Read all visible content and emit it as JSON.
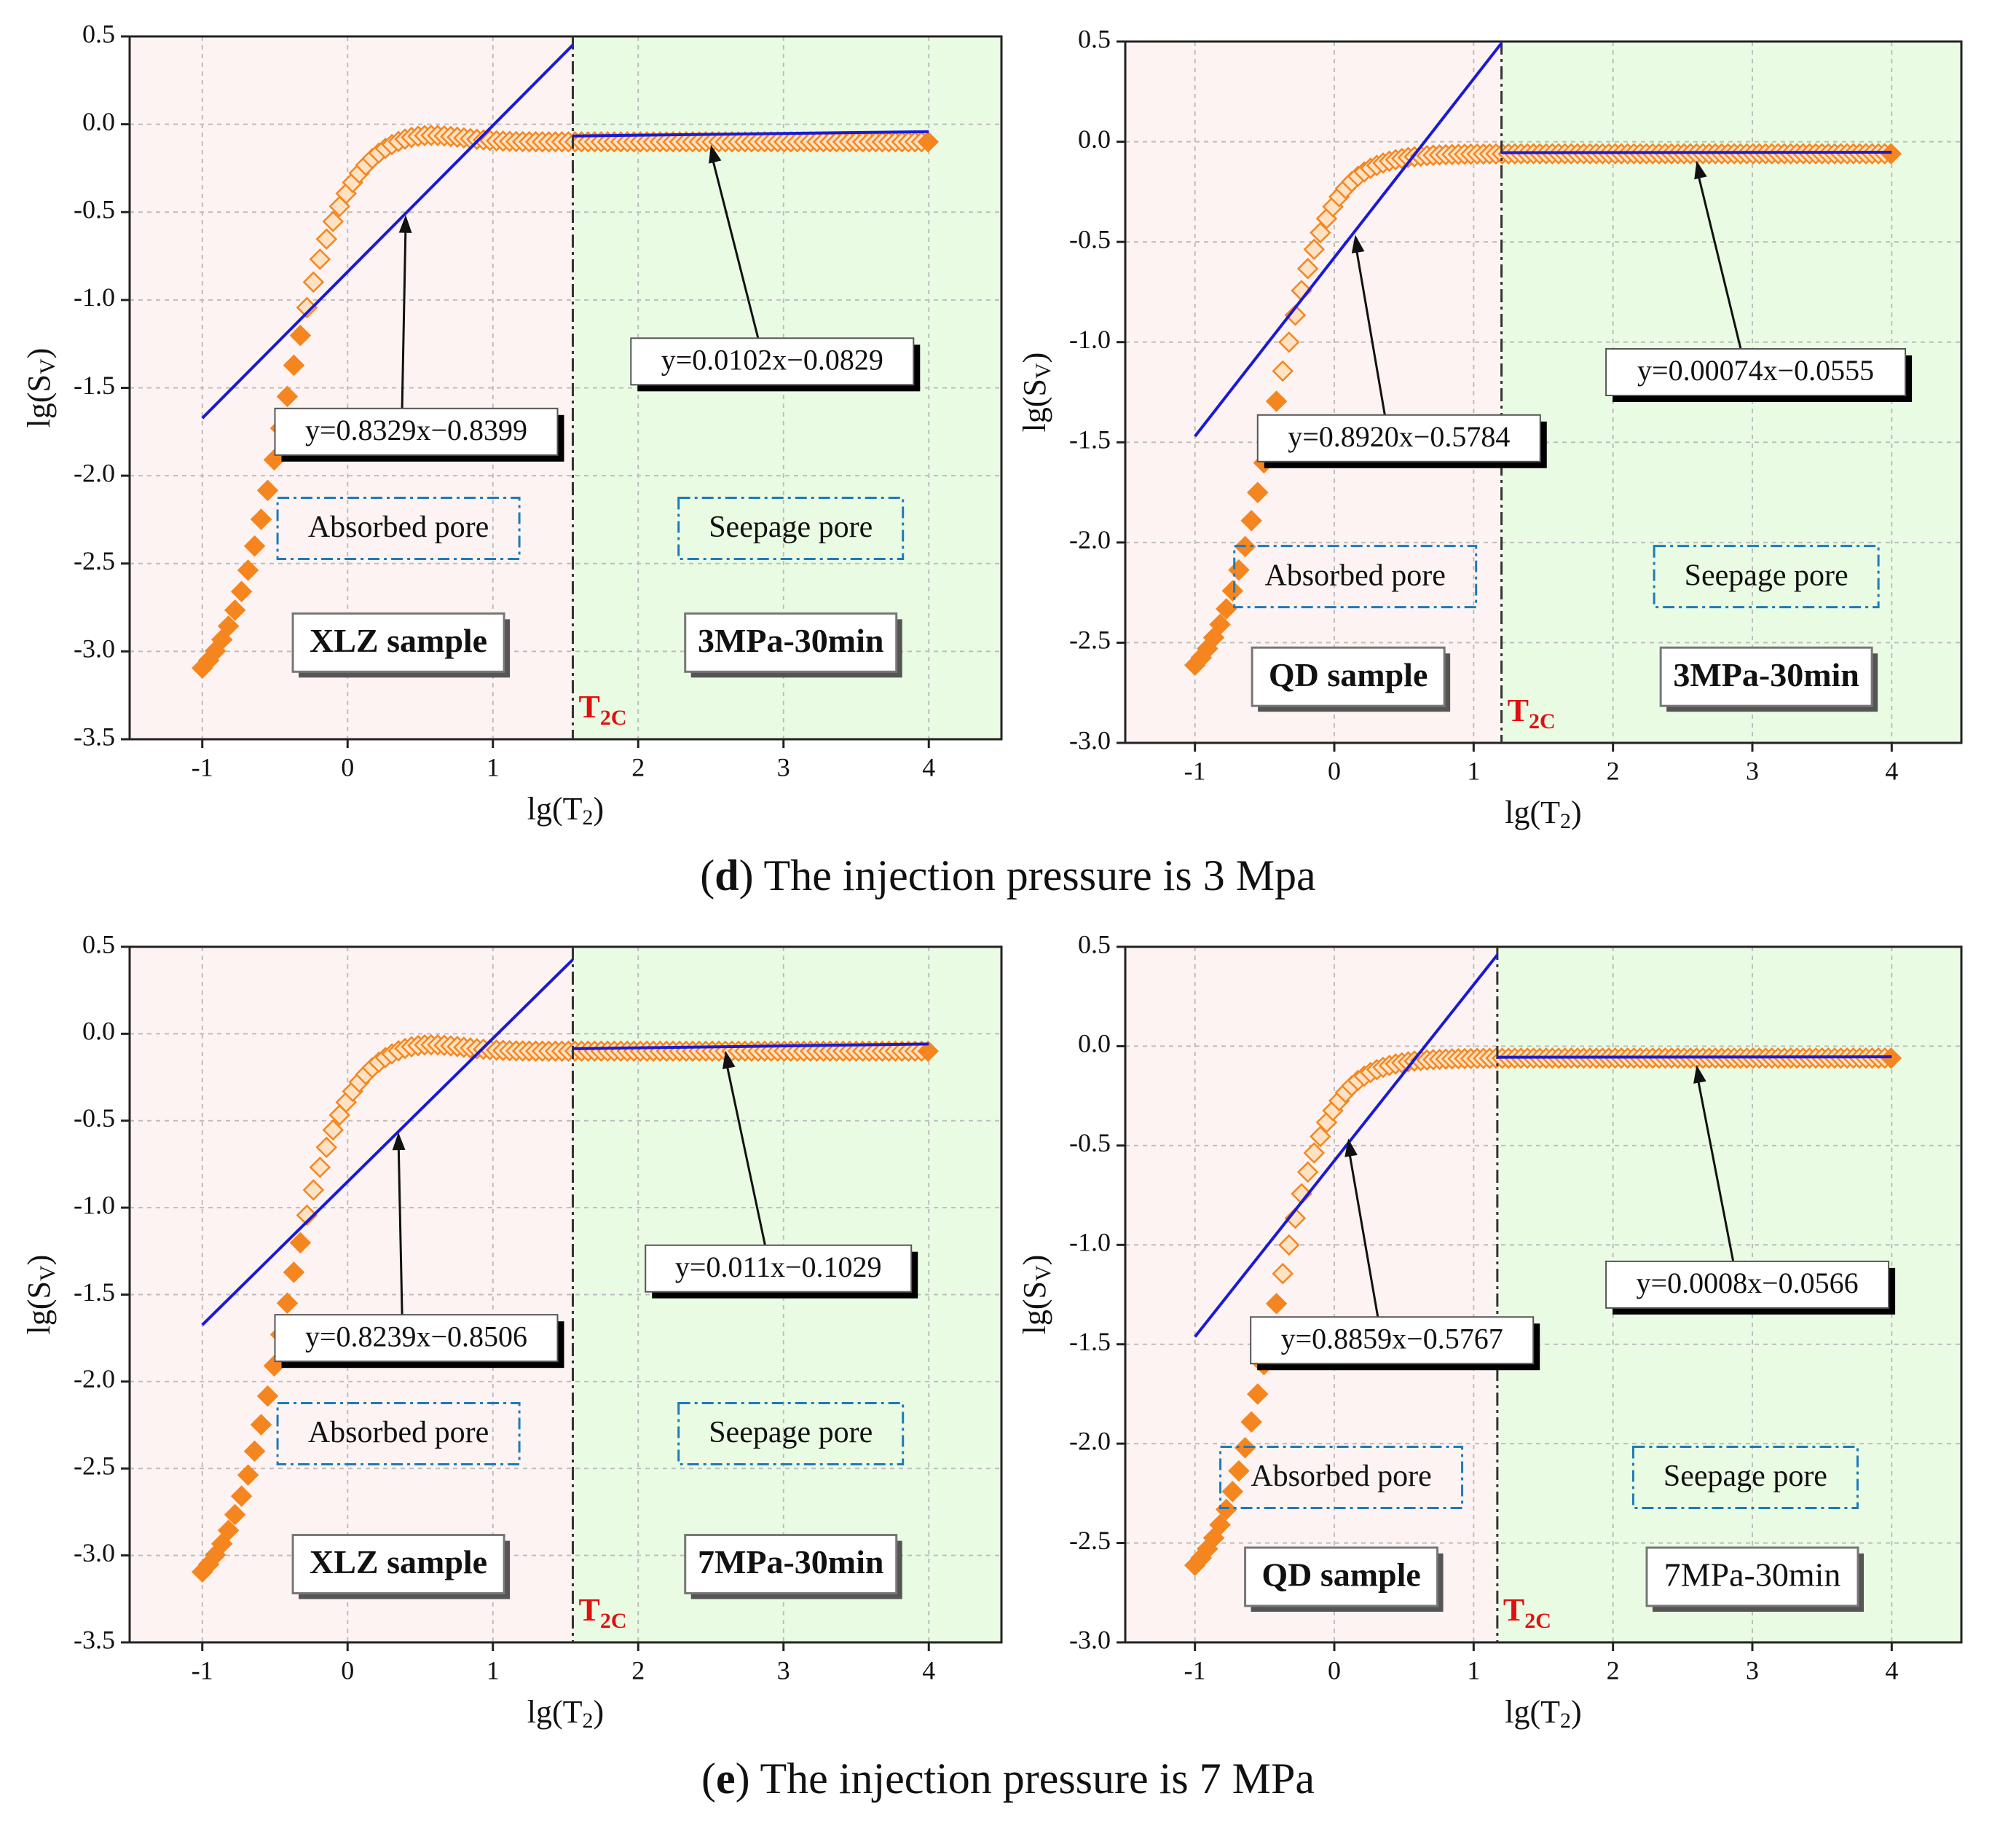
{
  "figure": {
    "caption_d": {
      "letter": "d",
      "text": "The injection pressure is 3 Mpa"
    },
    "caption_e": {
      "letter": "e",
      "text": "The injection pressure is 7 MPa"
    }
  },
  "colors": {
    "absorbed_bg": "#fdf3f3",
    "seepage_bg": "#eafbe3",
    "marker": "#f5861f",
    "fit_line": "#1a1ad6",
    "divider": "#333333",
    "t2c": "#e01010",
    "region_box": "#1f7ab8",
    "grid": "#bdbdbd"
  },
  "chart_data": [
    {
      "id": "d-xlz",
      "type": "scatter",
      "xlabel": "lg(T2)",
      "ylabel": "lg(SV)",
      "xlim": [
        -1.5,
        4.5
      ],
      "ylim": [
        -3.5,
        0.5
      ],
      "xticks": [
        -1,
        0,
        1,
        2,
        3,
        4
      ],
      "yticks": [
        0.5,
        0.0,
        -0.5,
        -1.0,
        -1.5,
        -2.0,
        -2.5,
        -3.0,
        -3.5
      ],
      "grid": true,
      "t2c": 1.55,
      "t2c_label": "T2C",
      "curve": {
        "plateau": -0.1,
        "ymin": -3.28,
        "bump": 0.06
      },
      "fits": [
        {
          "slope": 0.8329,
          "intercept": -0.8399,
          "x_from": -1.0,
          "x_to": 1.55,
          "label": "y=0.8329x−0.8399",
          "anchor": [
            0.4,
            -0.5
          ],
          "box_at": [
            -0.5,
            -1.75
          ],
          "box_style": "shadow"
        },
        {
          "slope": 0.0102,
          "intercept": -0.0829,
          "x_from": 1.55,
          "x_to": 4.0,
          "label": "y=0.0102x−0.0829",
          "anchor": [
            2.5,
            -0.1
          ],
          "box_at": [
            1.95,
            -1.35
          ],
          "box_style": "shadow"
        }
      ],
      "region_labels": [
        {
          "text": "Absorbed pore",
          "x": 0.35,
          "y": -2.3
        },
        {
          "text": "Seepage pore",
          "x": 3.05,
          "y": -2.3
        }
      ],
      "sample_label": {
        "text": "XLZ sample",
        "x": 0.35,
        "y": -2.95,
        "bold": true
      },
      "condition_label": {
        "text": "3MPa-30min",
        "x": 3.05,
        "y": -2.95,
        "bold": true
      }
    },
    {
      "id": "d-qd",
      "type": "scatter",
      "xlabel": "lg(T2)",
      "ylabel": "lg(SV)",
      "xlim": [
        -1.5,
        4.5
      ],
      "ylim": [
        -3.0,
        0.5
      ],
      "xticks": [
        -1,
        0,
        1,
        2,
        3,
        4
      ],
      "yticks": [
        0.5,
        0.0,
        -0.5,
        -1.0,
        -1.5,
        -2.0,
        -2.5,
        -3.0
      ],
      "grid": true,
      "t2c": 1.2,
      "t2c_label": "T2C",
      "curve": {
        "plateau": -0.06,
        "ymin": -2.77,
        "bump": 0.0
      },
      "fits": [
        {
          "slope": 0.892,
          "intercept": -0.5784,
          "x_from": -1.0,
          "x_to": 1.2,
          "label": "y=0.8920x−0.5784",
          "anchor": [
            0.15,
            -0.45
          ],
          "box_at": [
            -0.55,
            -1.48
          ],
          "box_style": "shadow"
        },
        {
          "slope": 0.00074,
          "intercept": -0.0555,
          "x_from": 1.2,
          "x_to": 4.0,
          "label": "y=0.00074x−0.0555",
          "anchor": [
            2.6,
            -0.08
          ],
          "box_at": [
            1.95,
            -1.15
          ],
          "box_style": "shadow"
        }
      ],
      "region_labels": [
        {
          "text": "Absorbed pore",
          "x": 0.15,
          "y": -2.17
        },
        {
          "text": "Seepage pore",
          "x": 3.1,
          "y": -2.17
        }
      ],
      "sample_label": {
        "text": "QD sample",
        "x": 0.1,
        "y": -2.67,
        "bold": true
      },
      "condition_label": {
        "text": "3MPa-30min",
        "x": 3.1,
        "y": -2.67,
        "bold": true
      }
    },
    {
      "id": "e-xlz",
      "type": "scatter",
      "xlabel": "lg(T2)",
      "ylabel": "lg(SV)",
      "xlim": [
        -1.5,
        4.5
      ],
      "ylim": [
        -3.5,
        0.5
      ],
      "xticks": [
        -1,
        0,
        1,
        2,
        3,
        4
      ],
      "yticks": [
        0.5,
        0.0,
        -0.5,
        -1.0,
        -1.5,
        -2.0,
        -2.5,
        -3.0,
        -3.5
      ],
      "grid": true,
      "t2c": 1.55,
      "t2c_label": "T2C",
      "curve": {
        "plateau": -0.1,
        "ymin": -3.28,
        "bump": 0.06
      },
      "fits": [
        {
          "slope": 0.8239,
          "intercept": -0.8506,
          "x_from": -1.0,
          "x_to": 1.55,
          "label": "y=0.8239x−0.8506",
          "anchor": [
            0.35,
            -0.55
          ],
          "box_at": [
            -0.5,
            -1.75
          ],
          "box_style": "shadow"
        },
        {
          "slope": 0.011,
          "intercept": -0.1029,
          "x_from": 1.55,
          "x_to": 4.0,
          "label": "y=0.011x−0.1029",
          "anchor": [
            2.6,
            -0.08
          ],
          "box_at": [
            2.05,
            -1.35
          ],
          "box_style": "shadow"
        }
      ],
      "region_labels": [
        {
          "text": "Absorbed pore",
          "x": 0.35,
          "y": -2.3
        },
        {
          "text": "Seepage pore",
          "x": 3.05,
          "y": -2.3
        }
      ],
      "sample_label": {
        "text": "XLZ sample",
        "x": 0.35,
        "y": -3.05,
        "bold": true
      },
      "condition_label": {
        "text": "7MPa-30min",
        "x": 3.05,
        "y": -3.05,
        "bold": true
      }
    },
    {
      "id": "e-qd",
      "type": "scatter",
      "xlabel": "lg(T2)",
      "ylabel": "lg(SV)",
      "xlim": [
        -1.5,
        4.5
      ],
      "ylim": [
        -3.0,
        0.5
      ],
      "xticks": [
        -1,
        0,
        1,
        2,
        3,
        4
      ],
      "yticks": [
        0.5,
        0.0,
        -0.5,
        -1.0,
        -1.5,
        -2.0,
        -2.5,
        -3.0
      ],
      "grid": true,
      "t2c": 1.17,
      "t2c_label": "T2C",
      "curve": {
        "plateau": -0.06,
        "ymin": -2.77,
        "bump": 0.0
      },
      "fits": [
        {
          "slope": 0.8859,
          "intercept": -0.5767,
          "x_from": -1.0,
          "x_to": 1.17,
          "label": "y=0.8859x−0.5767",
          "anchor": [
            0.1,
            -0.45
          ],
          "box_at": [
            -0.6,
            -1.48
          ],
          "box_style": "shadow"
        },
        {
          "slope": 0.0008,
          "intercept": -0.0566,
          "x_from": 1.17,
          "x_to": 4.0,
          "label": "y=0.0008x−0.0566",
          "anchor": [
            2.6,
            -0.08
          ],
          "box_at": [
            1.95,
            -1.2
          ],
          "box_style": "shadow"
        }
      ],
      "region_labels": [
        {
          "text": "Absorbed pore",
          "x": 0.05,
          "y": -2.17
        },
        {
          "text": "Seepage pore",
          "x": 2.95,
          "y": -2.17
        }
      ],
      "sample_label": {
        "text": "QD sample",
        "x": 0.05,
        "y": -2.67,
        "bold": true
      },
      "condition_label": {
        "text": "7MPa-30min",
        "x": 3.0,
        "y": -2.67,
        "bold": false
      }
    }
  ]
}
